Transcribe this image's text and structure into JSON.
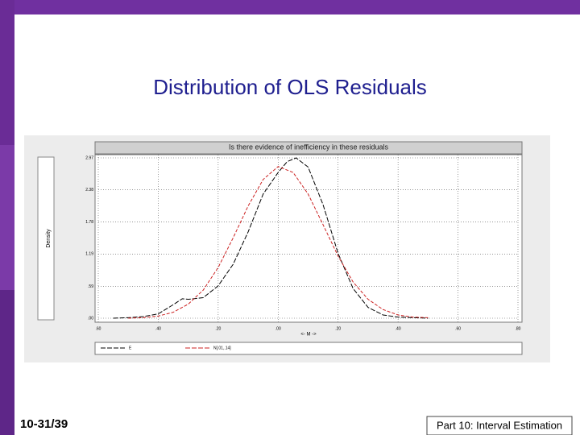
{
  "slide": {
    "title": "Distribution of OLS Residuals",
    "footer_left": "10-31/39",
    "footer_right": "Part 10: Interval Estimation"
  },
  "chart_data": {
    "type": "line",
    "title": "Is there evidence of inefficiency in these residuals",
    "y_label": "Density",
    "x_label": "<- M ->",
    "xlim": [
      -0.6,
      0.8
    ],
    "xticks": [
      {
        "value": -0.6,
        "label": ".60"
      },
      {
        "value": -0.4,
        "label": ".40"
      },
      {
        "value": -0.2,
        "label": ".20"
      },
      {
        "value": 0,
        "label": ".00"
      },
      {
        "value": 0.2,
        "label": ".20"
      },
      {
        "value": 0.4,
        "label": ".40"
      },
      {
        "value": 0.6,
        "label": ".60"
      },
      {
        "value": 0.8,
        "label": ".80"
      }
    ],
    "ylim": [
      0,
      2.97
    ],
    "yticks": [
      {
        "value": 0,
        "label": ".00"
      },
      {
        "value": 0.59,
        "label": ".59"
      },
      {
        "value": 1.19,
        "label": "1.19"
      },
      {
        "value": 1.78,
        "label": "1.78"
      },
      {
        "value": 2.38,
        "label": "2.38"
      },
      2.97
    ],
    "grid": true,
    "series": [
      {
        "name": "E",
        "color": "#000000",
        "x": [
          -0.55,
          -0.5,
          -0.45,
          -0.4,
          -0.35,
          -0.32,
          -0.3,
          -0.25,
          -0.2,
          -0.15,
          -0.1,
          -0.05,
          0,
          0.03,
          0.06,
          0.1,
          0.15,
          0.2,
          0.25,
          0.3,
          0.35,
          0.4,
          0.45,
          0.5
        ],
        "values": [
          0,
          0.01,
          0.03,
          0.08,
          0.25,
          0.36,
          0.35,
          0.38,
          0.6,
          1.0,
          1.6,
          2.3,
          2.7,
          2.9,
          2.97,
          2.8,
          2.1,
          1.2,
          0.55,
          0.2,
          0.06,
          0.02,
          0.01,
          0
        ]
      },
      {
        "name": "N[.01,.14]",
        "color": "#cc2222",
        "x": [
          -0.5,
          -0.45,
          -0.4,
          -0.35,
          -0.3,
          -0.25,
          -0.2,
          -0.15,
          -0.1,
          -0.05,
          0,
          0.05,
          0.1,
          0.15,
          0.2,
          0.25,
          0.3,
          0.35,
          0.4,
          0.45,
          0.5
        ],
        "values": [
          0,
          0.01,
          0.04,
          0.11,
          0.26,
          0.52,
          0.94,
          1.49,
          2.08,
          2.57,
          2.81,
          2.7,
          2.3,
          1.73,
          1.15,
          0.67,
          0.35,
          0.16,
          0.06,
          0.02,
          0.01
        ]
      }
    ]
  }
}
